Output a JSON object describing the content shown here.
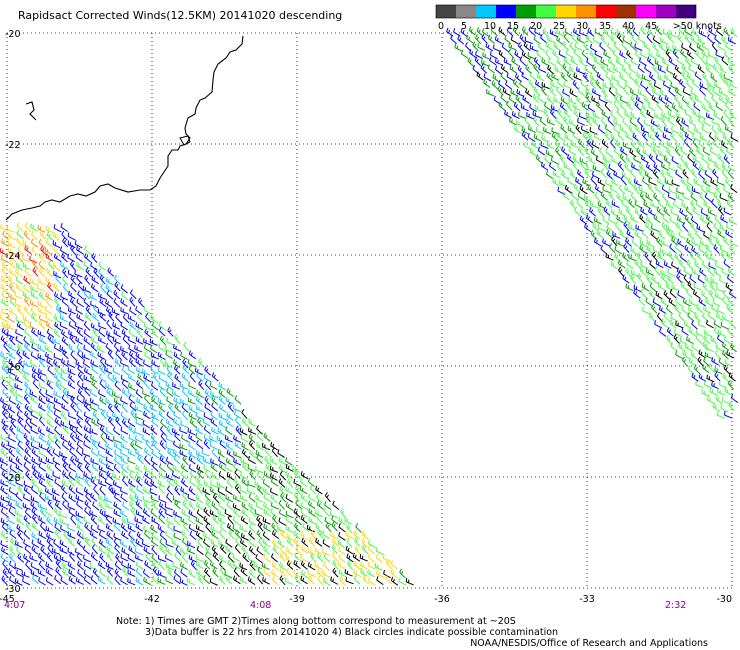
{
  "title": "Rapidsact Corrected Winds(12.5KM) 20141020 descending",
  "legend": {
    "colors": [
      "#444444",
      "#888888",
      "#00c8ff",
      "#0000ff",
      "#00a000",
      "#40ff40",
      "#ffd700",
      "#ff9000",
      "#ff0000",
      "#a03000",
      "#ff00ff",
      "#a000c0",
      "#400080"
    ],
    "labels": [
      "0",
      "5",
      "10",
      "15",
      "20",
      "25",
      "30",
      "35",
      "40",
      "45",
      ">50 knots"
    ]
  },
  "map": {
    "lat_labels": [
      "-20",
      "-22",
      "-24",
      "-26",
      "-28",
      "-30"
    ],
    "lon_labels": [
      "-45",
      "-42",
      "-39",
      "-36",
      "-33",
      "-30"
    ],
    "lat_values": [
      -20,
      -22,
      -24,
      -26,
      -28,
      -30
    ],
    "lon_values": [
      -45,
      -42,
      -39,
      -36,
      -33,
      -30
    ]
  },
  "times": [
    "4:07",
    "4:08",
    "2:32"
  ],
  "notes": {
    "line1": "Note: 1) Times are GMT 2)Times along bottom correspond to measurement at ~20S",
    "line2": "3)Data buffer is 22 hrs from 20141020 4) Black circles indicate possible contamination",
    "credit": "NOAA/NESDIS/Office of Research and Applications"
  }
}
